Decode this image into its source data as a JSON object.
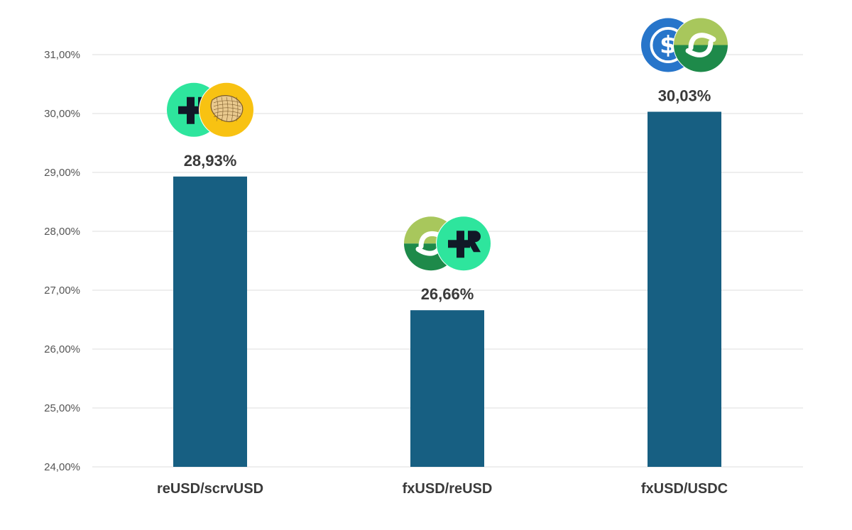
{
  "chart_data": {
    "type": "bar",
    "categories": [
      "reUSD/scrvUSD",
      "fxUSD/reUSD",
      "fxUSD/USDC"
    ],
    "values": [
      28.93,
      26.66,
      30.03
    ],
    "value_labels": [
      "28,93%",
      "26,66%",
      "30,03%"
    ],
    "ylim": [
      24,
      31.5
    ],
    "yticks": [
      24,
      25,
      26,
      27,
      28,
      29,
      30,
      31
    ],
    "ytick_labels": [
      "24,00%",
      "25,00%",
      "26,00%",
      "27,00%",
      "28,00%",
      "29,00%",
      "30,00%",
      "31,00%"
    ],
    "grid": true,
    "bar_color": "#175f82",
    "icons": [
      [
        "reusd-token-icon",
        "scrvusd-token-icon"
      ],
      [
        "fxusd-token-icon",
        "reusd-token-icon"
      ],
      [
        "usdc-token-icon",
        "fxusd-token-icon"
      ]
    ]
  },
  "colors": {
    "reusd_green": "#2ee59d",
    "scrvusd_yellow": "#f8c212",
    "fxusd_light": "#a8c75c",
    "fxusd_dark": "#1e8a4a",
    "usdc_blue": "#2775ca",
    "grid": "#dcdcdc"
  }
}
